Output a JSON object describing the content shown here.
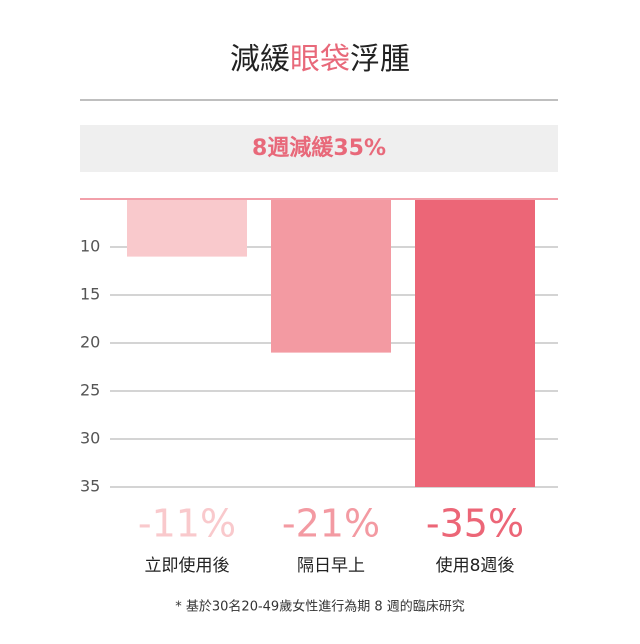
{
  "chart_data": {
    "type": "bar",
    "title": [
      {
        "text": "減緩",
        "color": "#222222"
      },
      {
        "text": "眼袋",
        "color": "#e8697a"
      },
      {
        "text": "浮腫",
        "color": "#222222"
      }
    ],
    "banner": "8週減緩35%",
    "categories": [
      "立即使用後",
      "隔日早上",
      "使用8週後"
    ],
    "values": [
      11,
      21,
      35
    ],
    "value_labels": [
      "-11%",
      "-21%",
      "-35%"
    ],
    "colors": [
      "#f9c9cc",
      "#f39aa2",
      "#ec6677"
    ],
    "ylim": [
      5,
      35
    ],
    "yticks": [
      10,
      15,
      20,
      25,
      30,
      35
    ],
    "inverted": true,
    "grid": true,
    "footnote": "* 基於30名20-49歲女性進行為期 8 週的臨床研究"
  }
}
